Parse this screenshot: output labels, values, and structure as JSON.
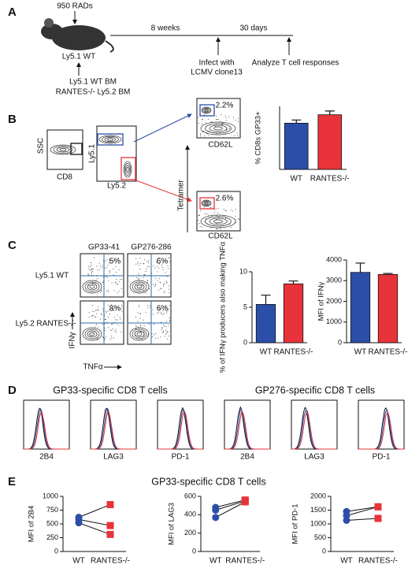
{
  "panel_a": {
    "letter": "A",
    "dose": "950 RADs",
    "recipient": "Ly5.1 WT",
    "donor_1": "Ly5.1 WT BM",
    "donor_2": "RANTES-/- Ly5.2 BM",
    "interval_1": "8 weeks",
    "interval_2": "30 days",
    "infect_1": "Infect with",
    "infect_2": "LCMV clone13",
    "analyze": "Analyze T cell responses"
  },
  "panel_b": {
    "letter": "B",
    "gate1_y": "SSC",
    "gate1_x": "CD8",
    "gate2_y": "Ly5.1",
    "gate2_x": "Ly5.2",
    "tetramer": "Tetramer",
    "top_pct": "2.2%",
    "top_x": "CD62L",
    "bottom_pct": "2.6%",
    "bottom_x": "CD62L"
  },
  "panel_c": {
    "letter": "C",
    "col_1": "GP33-41",
    "col_2": "GP276-286",
    "row_1": "Ly5.1 WT",
    "row_2": "Ly5.2 RANTES-/-",
    "y_axis": "IFNγ",
    "x_axis": "TNFα",
    "pcts": [
      "5%",
      "6%",
      "8%",
      "6%"
    ]
  },
  "panel_d": {
    "letter": "D",
    "title_1": "GP33-specific CD8 T cells",
    "title_2": "GP276-specific CD8 T cells",
    "markers": [
      "2B4",
      "LAG3",
      "PD-1",
      "2B4",
      "LAG3",
      "PD-1"
    ]
  },
  "panel_e": {
    "letter": "E",
    "title": "GP33-specific CD8 T cells"
  },
  "chart_data": [
    {
      "type": "bar",
      "ylabel": "% CD8s GP33+",
      "categories": [
        "WT",
        "RANTES-/-"
      ],
      "values": [
        2.2,
        2.6
      ],
      "errors": [
        0.15,
        0.18
      ],
      "colors": [
        "#2b4ea8",
        "#e8333a"
      ],
      "ylim": [
        0,
        3
      ],
      "yticks": []
    },
    {
      "type": "bar",
      "ylabel": "% of IFNγ producers also making TNFα",
      "categories": [
        "WT",
        "RANTES-/-"
      ],
      "values": [
        5.4,
        8.3
      ],
      "errors": [
        1.3,
        0.4
      ],
      "colors": [
        "#2b4ea8",
        "#e8333a"
      ],
      "ylim": [
        0,
        10
      ],
      "yticks": [
        0,
        5,
        10
      ]
    },
    {
      "type": "bar",
      "ylabel": "MFI of IFNγ",
      "categories": [
        "WT",
        "RANTES-/-"
      ],
      "values": [
        3400,
        3300
      ],
      "errors": [
        450,
        50
      ],
      "colors": [
        "#2b4ea8",
        "#e8333a"
      ],
      "ylim": [
        0,
        4000
      ],
      "yticks": [
        0,
        1000,
        2000,
        3000,
        4000
      ]
    },
    {
      "type": "line",
      "ylabel": "MFI of 2B4",
      "categories": [
        "WT",
        "RANTES-/-"
      ],
      "colors": [
        "#2b4ea8",
        "#e8333a"
      ],
      "series": [
        {
          "values": [
            620,
            850
          ]
        },
        {
          "values": [
            580,
            470
          ]
        },
        {
          "values": [
            520,
            310
          ]
        }
      ],
      "ylim": [
        0,
        1000
      ],
      "yticks": [
        0,
        250,
        500,
        750,
        1000
      ]
    },
    {
      "type": "line",
      "ylabel": "MFI of LAG3",
      "categories": [
        "WT",
        "RANTES-/-"
      ],
      "colors": [
        "#2b4ea8",
        "#e8333a"
      ],
      "series": [
        {
          "values": [
            480,
            560
          ]
        },
        {
          "values": [
            450,
            550
          ]
        },
        {
          "values": [
            370,
            540
          ]
        }
      ],
      "ylim": [
        0,
        600
      ],
      "yticks": [
        0,
        200,
        400,
        600
      ]
    },
    {
      "type": "line",
      "ylabel": "MFI of PD-1",
      "categories": [
        "WT",
        "RANTES-/-"
      ],
      "colors": [
        "#2b4ea8",
        "#e8333a"
      ],
      "series": [
        {
          "values": [
            1450,
            1620
          ]
        },
        {
          "values": [
            1300,
            1620
          ]
        },
        {
          "values": [
            1130,
            1200
          ]
        }
      ],
      "ylim": [
        0,
        2000
      ],
      "yticks": [
        0,
        500,
        1000,
        1500,
        2000
      ]
    }
  ]
}
